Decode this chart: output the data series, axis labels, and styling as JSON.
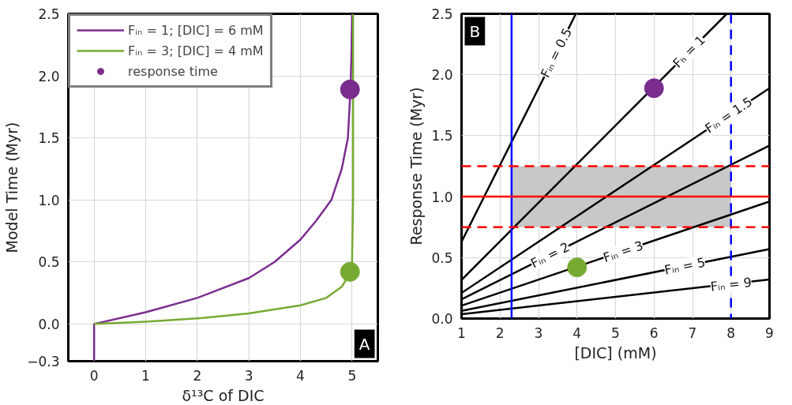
{
  "chart_data": [
    {
      "type": "line",
      "xlabel": "δ¹³C of DIC",
      "ylabel": "Model Time (Myr)",
      "xlim": [
        -0.5,
        5.5
      ],
      "xticks": [
        0,
        1,
        2,
        3,
        4,
        5
      ],
      "ylim": [
        -0.3,
        2.5
      ],
      "yticks": [
        -0.3,
        {
          "value": 0,
          "label": "0.0"
        },
        0.5,
        {
          "value": 1,
          "label": "1.0"
        },
        1.5,
        {
          "value": 2,
          "label": "2.0"
        },
        2.5
      ],
      "grid": true,
      "legend": "top left",
      "annotations": [
        "A"
      ],
      "series": [
        {
          "name": "Fᵢₙ = 1; [DIC] = 6 mM",
          "color": "#7b2d8e",
          "x": [
            0,
            0,
            1,
            2,
            3,
            3.5,
            4,
            4.3,
            4.6,
            4.8,
            4.92,
            4.97,
            4.99,
            5.0
          ],
          "values": [
            -0.3,
            0,
            0.095,
            0.21,
            0.37,
            0.5,
            0.68,
            0.83,
            1.0,
            1.25,
            1.5,
            1.9,
            2.2,
            2.5
          ]
        },
        {
          "name": "Fᵢₙ = 3; [DIC] = 4 mM",
          "color": "#77aa33",
          "x": [
            0,
            1,
            2,
            3,
            4,
            4.5,
            4.8,
            4.95,
            5.0,
            5.02,
            5.02
          ],
          "values": [
            0,
            0.018,
            0.045,
            0.085,
            0.15,
            0.21,
            0.3,
            0.4,
            0.5,
            1.0,
            2.5
          ]
        },
        {
          "name": "response time",
          "type": "scatter",
          "marker": "circle",
          "x": [
            4.96,
            4.96
          ],
          "values": [
            1.89,
            0.42
          ],
          "colors": [
            "#7b2d8e",
            "#77aa33"
          ]
        }
      ]
    },
    {
      "type": "line",
      "xlabel": "[DIC] (mM)",
      "ylabel": "Response Time (Myr)",
      "xlim": [
        1,
        9
      ],
      "xticks": [
        1,
        2,
        3,
        4,
        5,
        6,
        7,
        8,
        9
      ],
      "ylim": [
        0,
        2.5
      ],
      "yticks": [
        {
          "value": 0,
          "label": "0.0"
        },
        0.5,
        {
          "value": 1,
          "label": "1.0"
        },
        1.5,
        {
          "value": 2,
          "label": "2.0"
        },
        2.5
      ],
      "grid": true,
      "annotations": [
        "B",
        {
          "text": "Fᵢₙ = 0.5",
          "x": 3.46,
          "y": 2.18
        },
        {
          "text": "Fₕ = 1",
          "x": 6.91,
          "y": 2.19
        },
        {
          "text": "Fᵢₙ = 1.5",
          "x": 7.94,
          "y": 1.67
        },
        {
          "text": "Fᵢₙ = 2",
          "x": 3.3,
          "y": 0.52
        },
        {
          "text": "Fᵢₙ = 3",
          "x": 5.2,
          "y": 0.55
        },
        {
          "text": "Fᵢₙ = 5",
          "x": 6.8,
          "y": 0.43
        },
        {
          "text": "Fᵢₙ = 9",
          "x": 8.0,
          "y": 0.28
        }
      ],
      "ref_lines": [
        {
          "axis": "x",
          "value": 2.3,
          "color": "#0000ff",
          "line_style": "solid"
        },
        {
          "axis": "x",
          "value": 8,
          "color": "#0000ff",
          "line_style": "dashed"
        },
        {
          "axis": "y",
          "value": 1,
          "color": "#ff0000",
          "line_style": "solid"
        },
        {
          "axis": "y",
          "value": 0.75,
          "color": "#ff0000",
          "line_style": "dashed"
        },
        {
          "axis": "y",
          "value": 1.25,
          "color": "#ff0000",
          "line_style": "dashed"
        }
      ],
      "bands": [
        {
          "axis": "y",
          "from": 0.75,
          "to": 1.25,
          "color": "#c8c8c8"
        }
      ],
      "series": [
        {
          "color": "#000000",
          "x": [
            1,
            3.97
          ],
          "values": [
            0.63,
            2.5
          ]
        },
        {
          "color": "#000000",
          "x": [
            1,
            7.89
          ],
          "values": [
            0.317,
            2.5
          ]
        },
        {
          "color": "#000000",
          "x": [
            1,
            9
          ],
          "values": [
            0.21,
            1.89
          ]
        },
        {
          "color": "#000000",
          "x": [
            1,
            9
          ],
          "values": [
            0.158,
            1.42
          ]
        },
        {
          "color": "#000000",
          "x": [
            1,
            9
          ],
          "values": [
            0.106,
            0.96
          ]
        },
        {
          "color": "#000000",
          "x": [
            1,
            9
          ],
          "values": [
            0.063,
            0.57
          ]
        },
        {
          "color": "#000000",
          "x": [
            1,
            9
          ],
          "values": [
            0.035,
            0.32
          ]
        },
        {
          "type": "scatter",
          "marker": "circle",
          "x": [
            6,
            4
          ],
          "values": [
            1.89,
            0.42
          ],
          "colors": [
            "#7b2d8e",
            "#77aa33"
          ]
        }
      ]
    }
  ]
}
